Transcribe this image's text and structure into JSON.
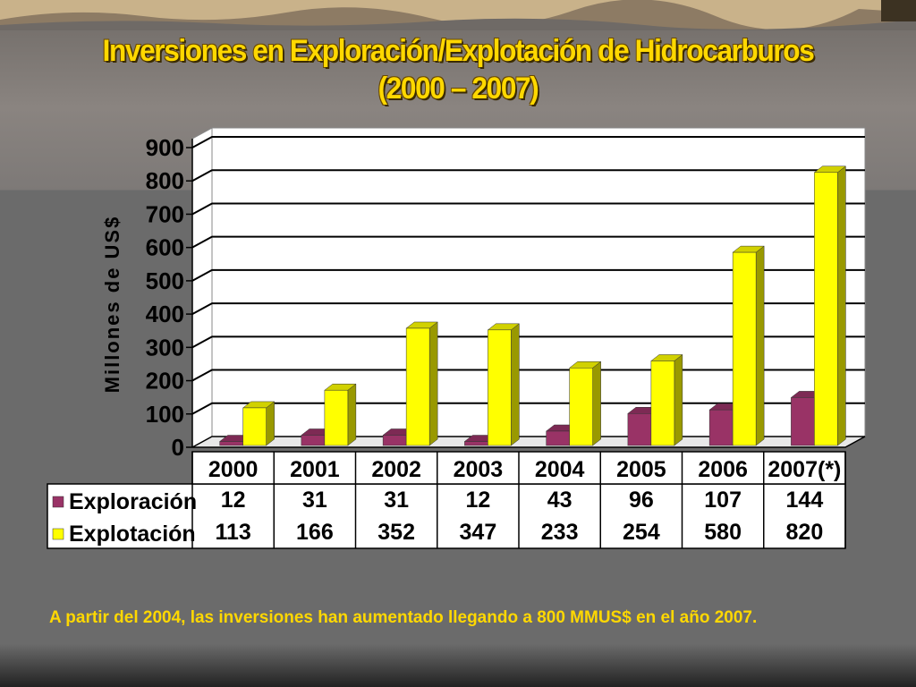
{
  "slide": {
    "title_line1": "Inversiones en Exploración/Explotación de Hidrocarburos",
    "title_line2": "(2000 – 2007)",
    "footnote": "A partir del 2004, las inversiones han aumentado llegando a 800 MMUS$ en el año 2007."
  },
  "colors": {
    "exploracion": "#993366",
    "explotacion": "#ffff00",
    "title": "#ffd800"
  },
  "chart_data": {
    "type": "bar",
    "title": "Inversiones en Exploración/Explotación de Hidrocarburos (2000 – 2007)",
    "ylabel": "Millones de US$",
    "xlabel": "",
    "ylim": [
      0,
      900
    ],
    "yticks": [
      "0",
      "100",
      "200",
      "300",
      "400",
      "500",
      "600",
      "700",
      "800",
      "900"
    ],
    "grid": true,
    "categories": [
      "2000",
      "2001",
      "2002",
      "2003",
      "2004",
      "2005",
      "2006",
      "2007(*)"
    ],
    "series": [
      {
        "name": "Exploración",
        "values": [
          12,
          31,
          31,
          12,
          43,
          96,
          107,
          144
        ]
      },
      {
        "name": "Explotación",
        "values": [
          113,
          166,
          352,
          347,
          233,
          254,
          580,
          820
        ]
      }
    ],
    "data_table": true
  }
}
